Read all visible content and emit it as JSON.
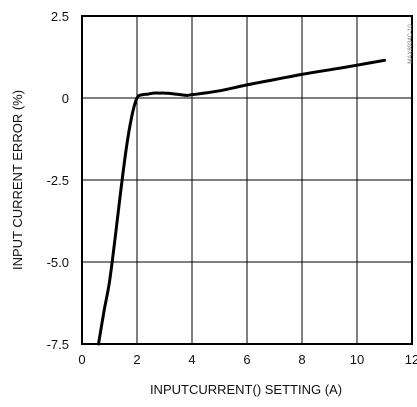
{
  "chart_data": {
    "type": "line",
    "title": "",
    "xlabel": "INPUTCURRENT() SETTING (A)",
    "ylabel": "INPUT CURRENT ERROR (%)",
    "xlim": [
      0,
      12
    ],
    "ylim": [
      -7.5,
      2.5
    ],
    "x_ticks": [
      0,
      2,
      4,
      6,
      8,
      10,
      12
    ],
    "x_tick_labels": [
      "0",
      "2",
      "4",
      "6",
      "8",
      "10",
      "12"
    ],
    "y_ticks": [
      2.5,
      0,
      -2.5,
      -5.0,
      -7.5
    ],
    "y_tick_labels": [
      "2.5",
      "0",
      "-2.5",
      "-5.0",
      "-7.5"
    ],
    "grid": true,
    "legend": "none",
    "line_color": "#000000",
    "series": [
      {
        "x": [
          0.6,
          0.8,
          1.0,
          1.2,
          1.4,
          1.6,
          1.8,
          2.0,
          2.2,
          2.4,
          2.6,
          2.8,
          3.0,
          3.2,
          3.4,
          3.6,
          3.8,
          4.0,
          5.0,
          6.0,
          7.0,
          8.0,
          9.0,
          10.0,
          11.0
        ],
        "y": [
          -7.5,
          -6.5,
          -5.6,
          -4.3,
          -2.9,
          -1.6,
          -0.6,
          0.0,
          0.1,
          0.12,
          0.15,
          0.15,
          0.15,
          0.14,
          0.12,
          0.1,
          0.08,
          0.1,
          0.22,
          0.4,
          0.56,
          0.72,
          0.86,
          1.0,
          1.15
        ]
      }
    ]
  },
  "side_code": "MAX8934C-10"
}
